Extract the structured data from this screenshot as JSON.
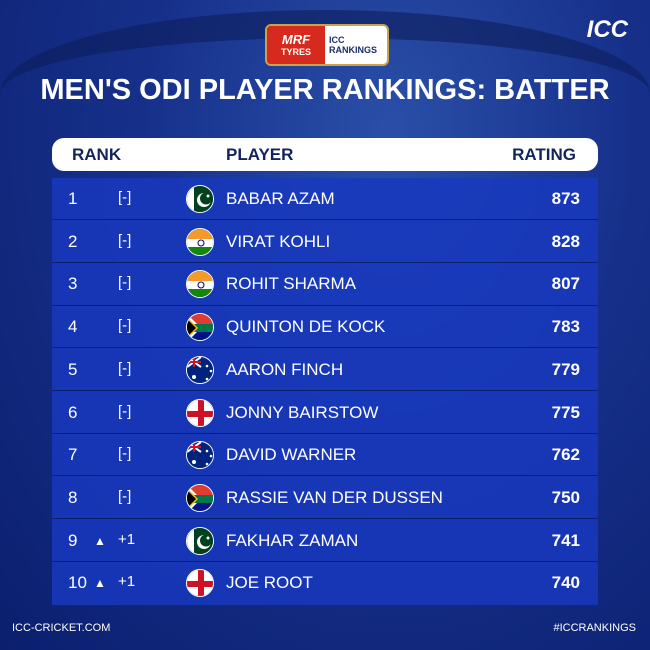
{
  "branding": {
    "sponsor": "MRF",
    "sponsor_sub": "TYRES",
    "icc_small": "ICC",
    "rankings": "RANKINGS",
    "icc_logo": "ICC"
  },
  "title": "MEN'S ODI PLAYER RANKINGS: BATTER",
  "headers": {
    "rank": "RANK",
    "player": "PLAYER",
    "rating": "RATING"
  },
  "rows": [
    {
      "rank": "1",
      "change": "[-]",
      "up": false,
      "country": "pakistan",
      "player": "BABAR AZAM",
      "rating": "873"
    },
    {
      "rank": "2",
      "change": "[-]",
      "up": false,
      "country": "india",
      "player": "VIRAT KOHLI",
      "rating": "828"
    },
    {
      "rank": "3",
      "change": "[-]",
      "up": false,
      "country": "india",
      "player": "ROHIT SHARMA",
      "rating": "807"
    },
    {
      "rank": "4",
      "change": "[-]",
      "up": false,
      "country": "south-africa",
      "player": "QUINTON DE KOCK",
      "rating": "783"
    },
    {
      "rank": "5",
      "change": "[-]",
      "up": false,
      "country": "australia",
      "player": "AARON FINCH",
      "rating": "779"
    },
    {
      "rank": "6",
      "change": "[-]",
      "up": false,
      "country": "england",
      "player": "JONNY BAIRSTOW",
      "rating": "775"
    },
    {
      "rank": "7",
      "change": "[-]",
      "up": false,
      "country": "australia",
      "player": "DAVID WARNER",
      "rating": "762"
    },
    {
      "rank": "8",
      "change": "[-]",
      "up": false,
      "country": "south-africa",
      "player": "RASSIE VAN DER DUSSEN",
      "rating": "750"
    },
    {
      "rank": "9",
      "change": "+1",
      "up": true,
      "country": "pakistan",
      "player": "FAKHAR ZAMAN",
      "rating": "741"
    },
    {
      "rank": "10",
      "change": "+1",
      "up": true,
      "country": "england",
      "player": "JOE ROOT",
      "rating": "740"
    }
  ],
  "footer": {
    "left": "ICC-CRICKET.COM",
    "right": "#ICCRANKINGS"
  },
  "colors": {
    "panel": "#1838be",
    "header_text": "#13235e"
  }
}
